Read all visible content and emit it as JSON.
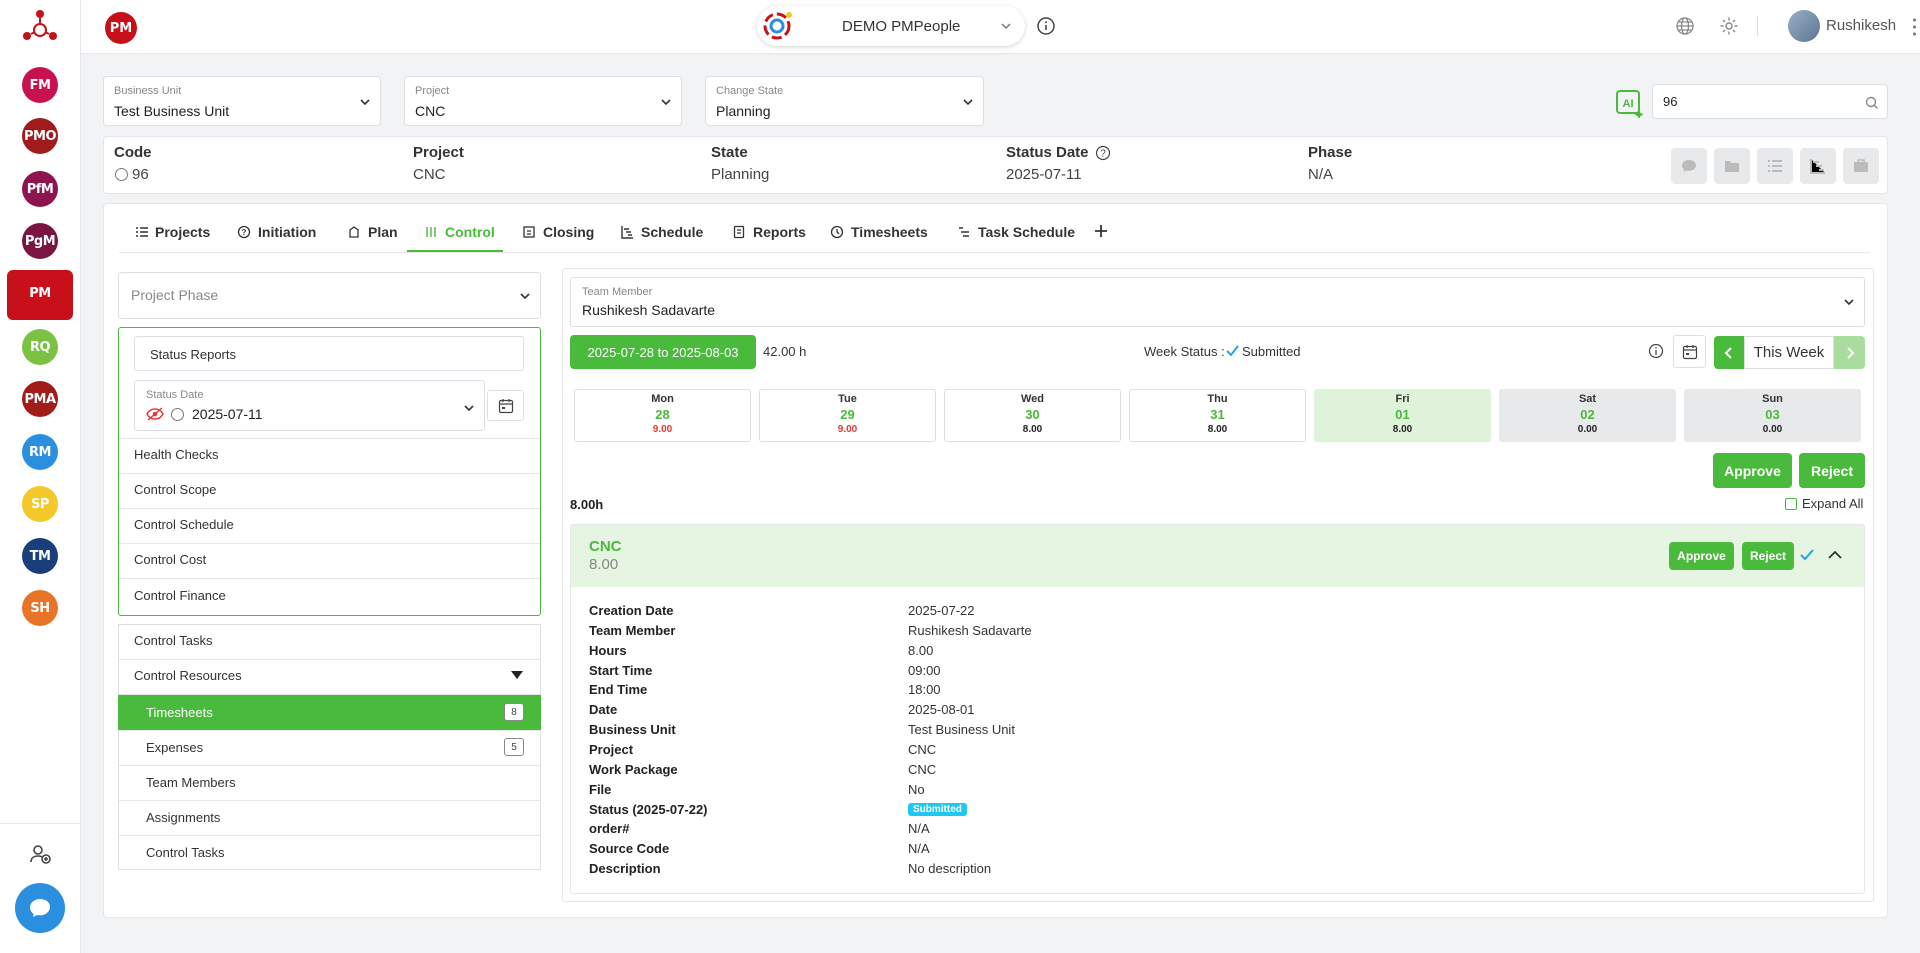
{
  "colors": {
    "accent": "#4aba3c",
    "brand": "#c8101a",
    "badge": "#1ec8f0"
  },
  "rail": {
    "items": [
      {
        "label": "FM",
        "color": "#c8124e"
      },
      {
        "label": "PMO",
        "color": "#a01c1c"
      },
      {
        "label": "PfM",
        "color": "#8e1450"
      },
      {
        "label": "PgM",
        "color": "#7a1440"
      },
      {
        "label": "PM",
        "color": "#c8101a"
      },
      {
        "label": "RQ",
        "color": "#7cc242"
      },
      {
        "label": "PMA",
        "color": "#a31c1c"
      },
      {
        "label": "RM",
        "color": "#2b8fe0"
      },
      {
        "label": "SP",
        "color": "#f4c829"
      },
      {
        "label": "TM",
        "color": "#1a3d7c"
      },
      {
        "label": "SH",
        "color": "#e8742a"
      }
    ]
  },
  "topbar": {
    "logo": "PM",
    "tenant": "DEMO PMPeople",
    "user": "Rushikesh"
  },
  "filters": {
    "business_unit": {
      "label": "Business Unit",
      "value": "Test Business Unit"
    },
    "project": {
      "label": "Project",
      "value": "CNC"
    },
    "change_state": {
      "label": "Change State",
      "value": "Planning"
    },
    "search_value": "96"
  },
  "info": {
    "code_label": "Code",
    "code_value": "96",
    "project_label": "Project",
    "project_value": "CNC",
    "state_label": "State",
    "state_value": "Planning",
    "status_date_label": "Status Date",
    "status_date_value": "2025-07-11",
    "phase_label": "Phase",
    "phase_value": "N/A"
  },
  "tabs": [
    "Projects",
    "Initiation",
    "Plan",
    "Control",
    "Closing",
    "Schedule",
    "Reports",
    "Timesheets",
    "Task Schedule"
  ],
  "left_panel": {
    "phase_placeholder": "Project Phase",
    "status_reports": "Status Reports",
    "status_date_label": "Status Date",
    "status_date_value": "2025-07-11",
    "group1": [
      "Health Checks",
      "Control Scope",
      "Control Schedule",
      "Control Cost",
      "Control Finance"
    ],
    "control_tasks": "Control Tasks",
    "control_resources": "Control Resources",
    "sub_items": [
      {
        "label": "Timesheets",
        "count": "8"
      },
      {
        "label": "Expenses",
        "count": "5"
      },
      {
        "label": "Team Members",
        "count": ""
      },
      {
        "label": "Assignments",
        "count": ""
      },
      {
        "label": "Control Tasks",
        "count": ""
      }
    ]
  },
  "right_panel": {
    "team_member_label": "Team Member",
    "team_member_value": "Rushikesh Sadavarte",
    "week_range": "2025-07-28 to 2025-08-03",
    "week_hours": "42.00 h",
    "week_status_label": "Week Status :",
    "week_status_value": "Submitted",
    "this_week": "This Week",
    "days": [
      {
        "name": "Mon",
        "num": "28",
        "hours": "9.00",
        "style": "red"
      },
      {
        "name": "Tue",
        "num": "29",
        "hours": "9.00",
        "style": "red"
      },
      {
        "name": "Wed",
        "num": "30",
        "hours": "8.00",
        "style": ""
      },
      {
        "name": "Thu",
        "num": "31",
        "hours": "8.00",
        "style": ""
      },
      {
        "name": "Fri",
        "num": "01",
        "hours": "8.00",
        "style": "highlight"
      },
      {
        "name": "Sat",
        "num": "02",
        "hours": "0.00",
        "style": "weekend"
      },
      {
        "name": "Sun",
        "num": "03",
        "hours": "0.00",
        "style": "weekend"
      }
    ],
    "approve": "Approve",
    "reject": "Reject",
    "total": "8.00h",
    "expand_all": "Expand All",
    "entry": {
      "title": "CNC",
      "hours": "8.00",
      "approve": "Approve",
      "reject": "Reject"
    },
    "details": [
      {
        "label": "Creation Date",
        "value": "2025-07-22"
      },
      {
        "label": "Team Member",
        "value": "Rushikesh Sadavarte"
      },
      {
        "label": "Hours",
        "value": "8.00"
      },
      {
        "label": "Start Time",
        "value": "09:00"
      },
      {
        "label": "End Time",
        "value": "18:00"
      },
      {
        "label": "Date",
        "value": "2025-08-01"
      },
      {
        "label": "Business Unit",
        "value": "Test Business Unit"
      },
      {
        "label": "Project",
        "value": "CNC"
      },
      {
        "label": "Work Package",
        "value": "CNC"
      },
      {
        "label": "File",
        "value": "No"
      },
      {
        "label": "Status (2025-07-22)",
        "value": "Submitted"
      },
      {
        "label": "order#",
        "value": "N/A"
      },
      {
        "label": "Source Code",
        "value": "N/A"
      },
      {
        "label": "Description",
        "value": "No description"
      }
    ]
  }
}
